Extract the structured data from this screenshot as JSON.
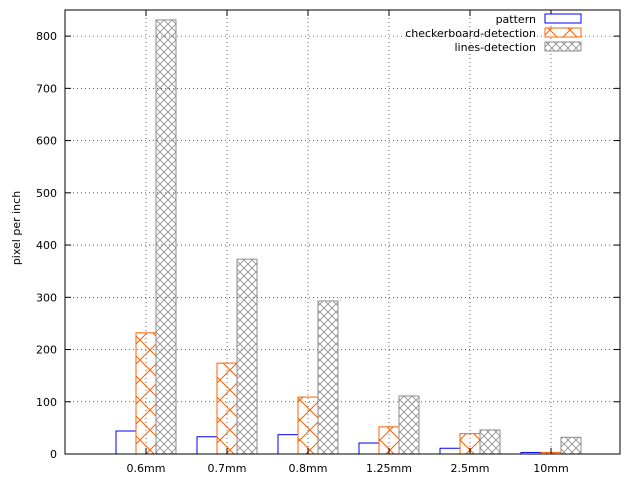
{
  "chart_data": {
    "type": "bar",
    "title": "",
    "xlabel": "",
    "ylabel": "pixel per inch",
    "ylim": [
      0,
      850
    ],
    "yticks": [
      0,
      100,
      200,
      300,
      400,
      500,
      600,
      700,
      800
    ],
    "grid": true,
    "legend_position": "top-right",
    "categories": [
      "0.6mm",
      "0.7mm",
      "0.8mm",
      "1.25mm",
      "2.5mm",
      "10mm"
    ],
    "series": [
      {
        "name": "pattern",
        "values": [
          44,
          33,
          37,
          21,
          11,
          3
        ],
        "color": "#0000ff",
        "fill": "none"
      },
      {
        "name": "checkerboard-detection",
        "values": [
          232,
          174,
          109,
          52,
          39,
          3
        ],
        "color": "#ff6000",
        "fill": "cross-hatch"
      },
      {
        "name": "lines-detection",
        "values": [
          831,
          373,
          293,
          111,
          46,
          32
        ],
        "color": "#8c8c8c",
        "fill": "cross-hatch-dense"
      }
    ]
  }
}
